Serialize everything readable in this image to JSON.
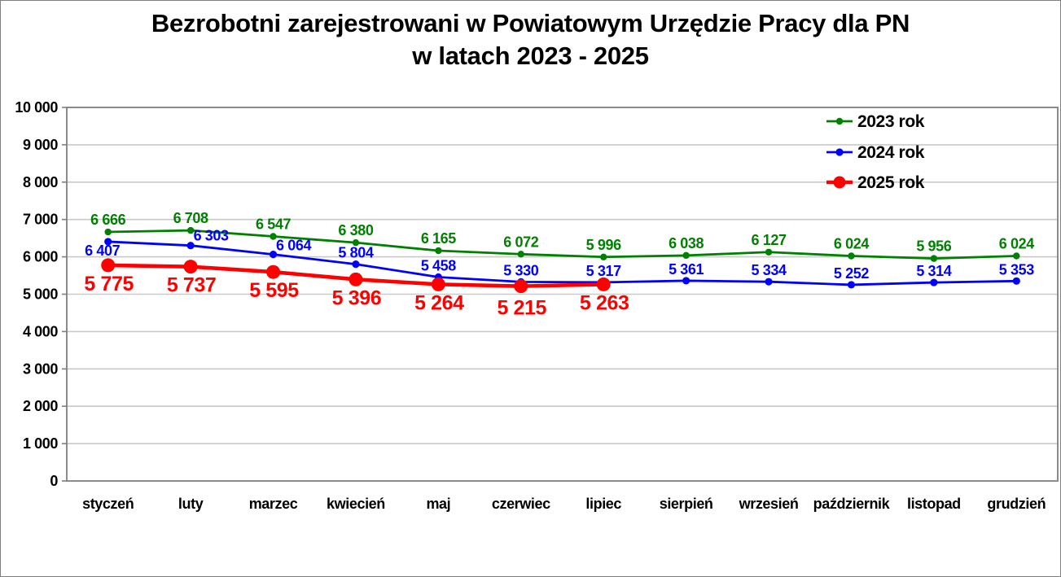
{
  "title": {
    "line1": "Bezrobotni zarejestrowani w Powiatowym Urzędzie Pracy dla PN",
    "line2": "w latach 2023 - 2025"
  },
  "chart_data": {
    "type": "line",
    "title": "Bezrobotni zarejestrowani w Powiatowym Urzędzie Pracy dla PN w latach 2023 - 2025",
    "categories": [
      "styczeń",
      "luty",
      "marzec",
      "kwiecień",
      "maj",
      "czerwiec",
      "lipiec",
      "sierpień",
      "wrzesień",
      "październik",
      "listopad",
      "grudzień"
    ],
    "series": [
      {
        "name": "2023 rok",
        "color": "#008000",
        "values": [
          6666,
          6708,
          6547,
          6380,
          6165,
          6072,
          5996,
          6038,
          6127,
          6024,
          5956,
          6024
        ]
      },
      {
        "name": "2024 rok",
        "color": "#0000ff",
        "values": [
          6407,
          6303,
          6064,
          5804,
          5458,
          5330,
          5317,
          5361,
          5334,
          5252,
          5314,
          5353
        ]
      },
      {
        "name": "2025 rok",
        "color": "#ff0000",
        "values": [
          5775,
          5737,
          5595,
          5396,
          5264,
          5215,
          5263
        ]
      }
    ],
    "ylim": [
      0,
      10000
    ],
    "ytick_labels": [
      "0",
      "1 000",
      "2 000",
      "3 000",
      "4 000",
      "5 000",
      "6 000",
      "7 000",
      "8 000",
      "9 000",
      "10 000"
    ],
    "grid": true,
    "data_labels": true,
    "legend_position": "top-right",
    "number_format": "space-separated thousands",
    "colors": {
      "grid": "#c9c9c9",
      "axis_border": "#7f7f7f",
      "text": "#000000"
    }
  }
}
